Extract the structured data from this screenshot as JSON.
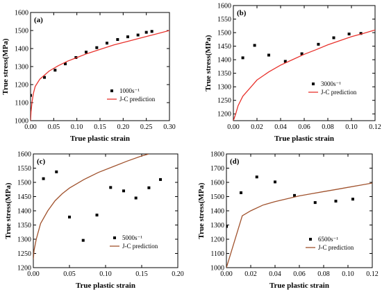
{
  "chart_data": [
    {
      "panel": "(a)",
      "type": "scatter",
      "xlabel": "True plastic strain",
      "ylabel": "True stress(MPa)",
      "xlim": [
        0,
        0.3
      ],
      "ylim": [
        1000,
        1600
      ],
      "xticks": [
        "0.00",
        "0.05",
        "0.10",
        "0.15",
        "0.20",
        "0.25",
        "0.30"
      ],
      "yticks": [
        "1000",
        "1100",
        "1200",
        "1300",
        "1400",
        "1500",
        "1600"
      ],
      "legend_position": "bottom-right",
      "series": [
        {
          "name": "1000s⁻¹",
          "kind": "points",
          "color": "#000000",
          "points": [
            [
              0.0,
              1140
            ],
            [
              0.03,
              1240
            ],
            [
              0.053,
              1280
            ],
            [
              0.075,
              1315
            ],
            [
              0.098,
              1350
            ],
            [
              0.12,
              1380
            ],
            [
              0.143,
              1405
            ],
            [
              0.165,
              1430
            ],
            [
              0.188,
              1450
            ],
            [
              0.21,
              1465
            ],
            [
              0.232,
              1475
            ],
            [
              0.25,
              1490
            ],
            [
              0.262,
              1495
            ]
          ]
        },
        {
          "name": "J-C prediction",
          "kind": "line",
          "color": "#e8322c",
          "points": [
            [
              0.0,
              1000
            ],
            [
              0.001,
              1050
            ],
            [
              0.003,
              1100
            ],
            [
              0.006,
              1150
            ],
            [
              0.01,
              1190
            ],
            [
              0.02,
              1230
            ],
            [
              0.04,
              1275
            ],
            [
              0.06,
              1305
            ],
            [
              0.08,
              1330
            ],
            [
              0.1,
              1350
            ],
            [
              0.12,
              1370
            ],
            [
              0.15,
              1395
            ],
            [
              0.18,
              1420
            ],
            [
              0.21,
              1440
            ],
            [
              0.24,
              1460
            ],
            [
              0.27,
              1480
            ],
            [
              0.3,
              1500
            ]
          ]
        }
      ]
    },
    {
      "panel": "(b)",
      "type": "scatter",
      "xlabel": "True plastic strain",
      "ylabel": "True stress(MPa)",
      "xlim": [
        0,
        0.12
      ],
      "ylim": [
        1175,
        1600
      ],
      "xticks": [
        "0.00",
        "0.02",
        "0.04",
        "0.06",
        "0.08",
        "0.10",
        "0.12"
      ],
      "yticks": [
        "1200",
        "1250",
        "1300",
        "1350",
        "1400",
        "1450",
        "1500",
        "1550",
        "1600"
      ],
      "legend_position": "bottom-right",
      "series": [
        {
          "name": "3000s⁻¹",
          "kind": "points",
          "color": "#000000",
          "points": [
            [
              0.008,
              1407
            ],
            [
              0.018,
              1453
            ],
            [
              0.03,
              1417
            ],
            [
              0.044,
              1394
            ],
            [
              0.058,
              1422
            ],
            [
              0.072,
              1457
            ],
            [
              0.085,
              1481
            ],
            [
              0.098,
              1495
            ],
            [
              0.108,
              1497
            ]
          ]
        },
        {
          "name": "J-C prediction",
          "kind": "line",
          "color": "#e8322c",
          "points": [
            [
              0.0,
              1175
            ],
            [
              0.002,
              1200
            ],
            [
              0.004,
              1230
            ],
            [
              0.008,
              1265
            ],
            [
              0.015,
              1300
            ],
            [
              0.02,
              1325
            ],
            [
              0.03,
              1355
            ],
            [
              0.04,
              1380
            ],
            [
              0.05,
              1400
            ],
            [
              0.06,
              1420
            ],
            [
              0.07,
              1437
            ],
            [
              0.08,
              1455
            ],
            [
              0.09,
              1470
            ],
            [
              0.1,
              1485
            ],
            [
              0.11,
              1497
            ],
            [
              0.12,
              1510
            ]
          ]
        }
      ]
    },
    {
      "panel": "(c)",
      "type": "scatter",
      "xlabel": "True plastic strain",
      "ylabel": "True stress(MPa)",
      "xlim": [
        0,
        0.2
      ],
      "ylim": [
        1200,
        1600
      ],
      "xticks": [
        "0.00",
        "0.05",
        "0.10",
        "0.15",
        "0.20"
      ],
      "yticks": [
        "1200",
        "1250",
        "1300",
        "1350",
        "1400",
        "1450",
        "1500",
        "1550",
        "1600"
      ],
      "legend_position": "bottom-right",
      "series": [
        {
          "name": "5000s⁻¹",
          "kind": "points",
          "color": "#000000",
          "points": [
            [
              0.014,
              1513
            ],
            [
              0.032,
              1537
            ],
            [
              0.05,
              1378
            ],
            [
              0.069,
              1296
            ],
            [
              0.088,
              1385
            ],
            [
              0.107,
              1482
            ],
            [
              0.125,
              1470
            ],
            [
              0.142,
              1445
            ],
            [
              0.16,
              1481
            ],
            [
              0.176,
              1510
            ]
          ]
        },
        {
          "name": "J-C prediction",
          "kind": "line",
          "color": "#a0522d",
          "points": [
            [
              0.0,
              1230
            ],
            [
              0.001,
              1260
            ],
            [
              0.004,
              1300
            ],
            [
              0.01,
              1355
            ],
            [
              0.02,
              1400
            ],
            [
              0.03,
              1435
            ],
            [
              0.04,
              1460
            ],
            [
              0.05,
              1480
            ],
            [
              0.07,
              1510
            ],
            [
              0.09,
              1535
            ],
            [
              0.11,
              1555
            ],
            [
              0.13,
              1575
            ],
            [
              0.15,
              1593
            ],
            [
              0.16,
              1600
            ]
          ]
        }
      ]
    },
    {
      "panel": "(d)",
      "type": "scatter",
      "xlabel": "True plastic strain",
      "ylabel": "True stress(MPa)",
      "xlim": [
        0,
        0.12
      ],
      "ylim": [
        1000,
        1800
      ],
      "xticks": [
        "0.00",
        "0.02",
        "0.04",
        "0.06",
        "0.08",
        "0.10",
        "0.12"
      ],
      "yticks": [
        "1000",
        "1100",
        "1200",
        "1300",
        "1400",
        "1500",
        "1600",
        "1700",
        "1800"
      ],
      "legend_position": "bottom-right",
      "series": [
        {
          "name": "6500s⁻¹",
          "kind": "points",
          "color": "#000000",
          "points": [
            [
              0.0,
              1290
            ],
            [
              0.012,
              1527
            ],
            [
              0.025,
              1638
            ],
            [
              0.04,
              1603
            ],
            [
              0.056,
              1508
            ],
            [
              0.073,
              1458
            ],
            [
              0.09,
              1468
            ],
            [
              0.104,
              1482
            ]
          ]
        },
        {
          "name": "J-C prediction",
          "kind": "line",
          "color": "#a0522d",
          "points": [
            [
              0.0,
              1000
            ],
            [
              0.013,
              1365
            ],
            [
              0.02,
              1400
            ],
            [
              0.03,
              1440
            ],
            [
              0.04,
              1465
            ],
            [
              0.05,
              1485
            ],
            [
              0.06,
              1505
            ],
            [
              0.07,
              1520
            ],
            [
              0.08,
              1535
            ],
            [
              0.09,
              1550
            ],
            [
              0.1,
              1565
            ],
            [
              0.11,
              1580
            ],
            [
              0.12,
              1595
            ]
          ]
        }
      ]
    }
  ]
}
